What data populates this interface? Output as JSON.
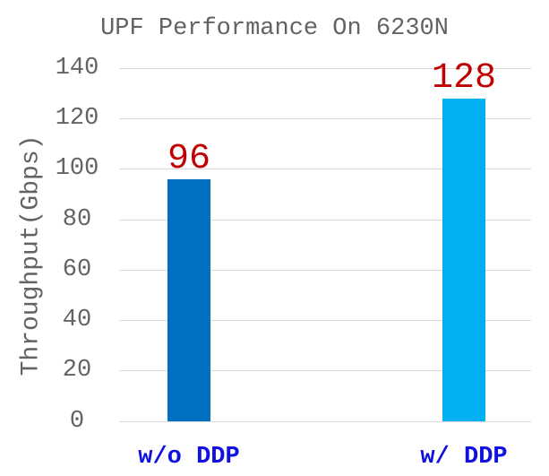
{
  "chart_data": {
    "type": "bar",
    "title": "UPF Performance On 6230N",
    "xlabel": "",
    "ylabel": "Throughput(Gbps)",
    "categories": [
      "w/o DDP",
      "w/ DDP"
    ],
    "values": [
      96,
      128
    ],
    "value_labels": [
      "96",
      "128"
    ],
    "yticks": [
      "0",
      "20",
      "40",
      "60",
      "80",
      "100",
      "120",
      "140"
    ],
    "ylim": [
      0,
      140
    ],
    "ytick_step": 20,
    "grid": "horizontal-only",
    "legend": "none",
    "colors": {
      "bar_colors": [
        "#0070C0",
        "#00B0F0"
      ],
      "value_label_color": "#C00000",
      "category_label_color": "#1010E0",
      "axis_text_color": "#636363",
      "title_color": "#636363",
      "gridline_color": "#D9D9D9",
      "background": "#FFFFFF"
    }
  }
}
